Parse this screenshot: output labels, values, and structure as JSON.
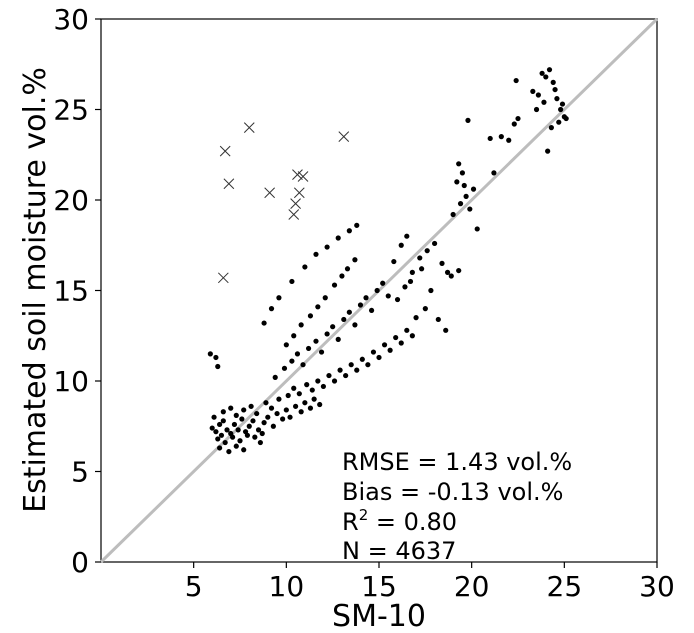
{
  "chart_data": {
    "type": "scatter",
    "title": "",
    "xlabel": "SM-10",
    "ylabel": "Estimated soil moisture vol.%",
    "xlim": [
      0,
      30
    ],
    "ylim": [
      0,
      30
    ],
    "xticks": [
      5,
      10,
      15,
      20,
      25,
      30
    ],
    "yticks": [
      0,
      5,
      10,
      15,
      20,
      25,
      30
    ],
    "grid": false,
    "one_to_one_line": {
      "from": [
        0,
        0
      ],
      "to": [
        30,
        30
      ],
      "color": "#bdbdbd"
    },
    "annotations": {
      "rmse": "RMSE = 1.43 vol.%",
      "bias": "Bias = -0.13 vol.%",
      "r2_base": "R",
      "r2_sup": "2",
      "r2_rest": " = 0.80",
      "n": "N = 4637"
    },
    "series": [
      {
        "marker": "circle",
        "color": "#000000",
        "points": [
          [
            5.9,
            11.5
          ],
          [
            6.2,
            11.3
          ],
          [
            6.3,
            10.8
          ],
          [
            6.0,
            7.4
          ],
          [
            6.2,
            7.2
          ],
          [
            6.4,
            7.6
          ],
          [
            6.5,
            7.0
          ],
          [
            6.6,
            7.8
          ],
          [
            6.8,
            7.3
          ],
          [
            7.0,
            7.1
          ],
          [
            7.2,
            7.6
          ],
          [
            7.4,
            7.3
          ],
          [
            7.6,
            7.9
          ],
          [
            7.8,
            7.2
          ],
          [
            8.0,
            7.5
          ],
          [
            8.2,
            7.8
          ],
          [
            8.5,
            7.3
          ],
          [
            8.8,
            7.7
          ],
          [
            9.0,
            8.0
          ],
          [
            9.3,
            7.5
          ],
          [
            9.5,
            8.2
          ],
          [
            9.8,
            7.9
          ],
          [
            10.0,
            8.4
          ],
          [
            10.2,
            8.0
          ],
          [
            10.5,
            8.6
          ],
          [
            10.8,
            8.3
          ],
          [
            11.0,
            8.8
          ],
          [
            11.3,
            8.5
          ],
          [
            11.5,
            9.0
          ],
          [
            11.8,
            8.7
          ],
          [
            6.3,
            6.8
          ],
          [
            6.7,
            6.6
          ],
          [
            7.1,
            6.9
          ],
          [
            7.5,
            6.7
          ],
          [
            7.9,
            7.0
          ],
          [
            8.3,
            6.9
          ],
          [
            8.7,
            7.1
          ],
          [
            6.1,
            8.0
          ],
          [
            6.6,
            8.3
          ],
          [
            7.0,
            8.5
          ],
          [
            7.3,
            8.1
          ],
          [
            7.7,
            8.4
          ],
          [
            8.1,
            8.6
          ],
          [
            8.4,
            8.2
          ],
          [
            8.9,
            8.8
          ],
          [
            9.2,
            8.5
          ],
          [
            9.6,
            9.0
          ],
          [
            10.1,
            9.2
          ],
          [
            10.4,
            9.6
          ],
          [
            10.7,
            9.3
          ],
          [
            11.1,
            9.8
          ],
          [
            11.4,
            9.5
          ],
          [
            11.7,
            10.0
          ],
          [
            12.0,
            9.7
          ],
          [
            12.3,
            10.3
          ],
          [
            12.6,
            10.0
          ],
          [
            12.9,
            10.6
          ],
          [
            13.2,
            10.3
          ],
          [
            13.5,
            10.9
          ],
          [
            13.8,
            10.6
          ],
          [
            14.1,
            11.2
          ],
          [
            14.4,
            10.9
          ],
          [
            14.7,
            11.6
          ],
          [
            15.0,
            11.3
          ],
          [
            15.3,
            12.0
          ],
          [
            15.6,
            11.7
          ],
          [
            15.9,
            12.4
          ],
          [
            16.2,
            12.1
          ],
          [
            16.5,
            12.8
          ],
          [
            16.8,
            12.5
          ],
          [
            9.4,
            10.2
          ],
          [
            9.9,
            10.7
          ],
          [
            10.3,
            11.1
          ],
          [
            10.6,
            11.5
          ],
          [
            10.9,
            10.9
          ],
          [
            11.2,
            11.8
          ],
          [
            11.6,
            12.2
          ],
          [
            11.9,
            11.6
          ],
          [
            12.2,
            12.6
          ],
          [
            12.5,
            13.0
          ],
          [
            12.8,
            12.3
          ],
          [
            13.1,
            13.4
          ],
          [
            13.4,
            13.8
          ],
          [
            13.7,
            13.1
          ],
          [
            14.0,
            14.2
          ],
          [
            14.3,
            14.6
          ],
          [
            14.6,
            13.9
          ],
          [
            14.9,
            15.0
          ],
          [
            15.2,
            15.4
          ],
          [
            15.5,
            14.7
          ],
          [
            10.0,
            12.0
          ],
          [
            10.4,
            12.5
          ],
          [
            10.8,
            13.1
          ],
          [
            11.3,
            13.6
          ],
          [
            11.7,
            14.1
          ],
          [
            12.1,
            14.6
          ],
          [
            12.6,
            15.3
          ],
          [
            13.0,
            15.8
          ],
          [
            13.3,
            16.2
          ],
          [
            13.7,
            16.7
          ],
          [
            8.8,
            13.2
          ],
          [
            9.2,
            14.0
          ],
          [
            9.6,
            14.6
          ],
          [
            10.3,
            15.5
          ],
          [
            11.0,
            16.3
          ],
          [
            11.6,
            17.0
          ],
          [
            12.2,
            17.4
          ],
          [
            12.8,
            17.9
          ],
          [
            13.4,
            18.3
          ],
          [
            13.8,
            18.6
          ],
          [
            16.0,
            14.5
          ],
          [
            16.4,
            15.2
          ],
          [
            16.8,
            16.0
          ],
          [
            17.2,
            16.8
          ],
          [
            17.6,
            17.2
          ],
          [
            18.0,
            17.6
          ],
          [
            18.4,
            16.5
          ],
          [
            18.7,
            16.0
          ],
          [
            16.2,
            17.5
          ],
          [
            16.5,
            18.0
          ],
          [
            17.0,
            13.5
          ],
          [
            17.5,
            14.0
          ],
          [
            18.2,
            13.4
          ],
          [
            18.6,
            12.8
          ],
          [
            17.8,
            15.0
          ],
          [
            16.7,
            15.5
          ],
          [
            17.3,
            16.2
          ],
          [
            18.9,
            15.8
          ],
          [
            19.3,
            16.1
          ],
          [
            15.8,
            16.6
          ],
          [
            19.0,
            19.2
          ],
          [
            19.4,
            19.8
          ],
          [
            19.7,
            20.2
          ],
          [
            19.2,
            21.0
          ],
          [
            19.6,
            20.8
          ],
          [
            19.9,
            19.5
          ],
          [
            20.3,
            18.4
          ],
          [
            20.1,
            20.6
          ],
          [
            19.3,
            22.0
          ],
          [
            19.5,
            21.5
          ],
          [
            19.8,
            24.4
          ],
          [
            21.0,
            23.4
          ],
          [
            21.2,
            21.5
          ],
          [
            21.6,
            23.5
          ],
          [
            22.0,
            23.3
          ],
          [
            22.3,
            24.2
          ],
          [
            22.5,
            24.5
          ],
          [
            22.4,
            26.6
          ],
          [
            23.3,
            26.0
          ],
          [
            23.6,
            25.8
          ],
          [
            23.8,
            27.0
          ],
          [
            24.0,
            26.8
          ],
          [
            24.2,
            27.2
          ],
          [
            24.4,
            26.5
          ],
          [
            24.6,
            25.6
          ],
          [
            24.8,
            25.0
          ],
          [
            25.0,
            24.6
          ],
          [
            24.3,
            24.0
          ],
          [
            24.1,
            22.7
          ],
          [
            23.9,
            25.4
          ],
          [
            24.5,
            26.1
          ],
          [
            24.7,
            24.3
          ],
          [
            25.1,
            24.5
          ],
          [
            23.5,
            25.0
          ],
          [
            24.9,
            25.3
          ],
          [
            6.4,
            6.3
          ],
          [
            6.9,
            6.1
          ],
          [
            7.3,
            6.4
          ],
          [
            7.7,
            6.2
          ],
          [
            8.6,
            6.6
          ]
        ]
      },
      {
        "marker": "x",
        "color": "#333333",
        "points": [
          [
            8.0,
            24.0
          ],
          [
            13.1,
            23.5
          ],
          [
            6.7,
            22.7
          ],
          [
            6.9,
            20.9
          ],
          [
            9.1,
            20.4
          ],
          [
            10.6,
            21.4
          ],
          [
            10.9,
            21.3
          ],
          [
            10.7,
            20.4
          ],
          [
            10.5,
            19.8
          ],
          [
            10.4,
            19.2
          ],
          [
            6.6,
            15.7
          ]
        ]
      }
    ]
  }
}
